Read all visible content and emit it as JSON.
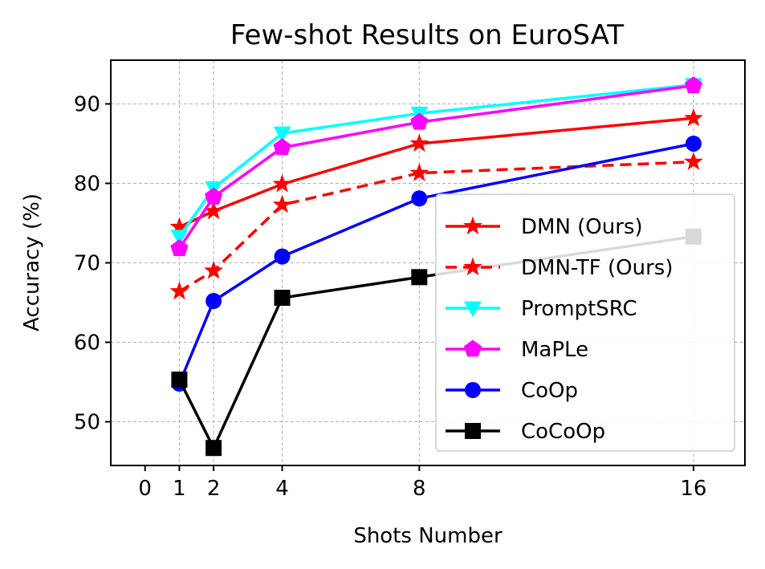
{
  "chart_data": {
    "type": "line",
    "title": "Few-shot Results on EuroSAT",
    "xlabel": "Shots Number",
    "ylabel": "Accuracy (%)",
    "x": [
      1,
      2,
      4,
      8,
      16
    ],
    "xticks": [
      0,
      1,
      2,
      4,
      8,
      16
    ],
    "xtick_labels": [
      "0",
      "1",
      "2",
      "4",
      "8",
      "16"
    ],
    "yticks": [
      50,
      60,
      70,
      80,
      90
    ],
    "ytick_labels": [
      "50",
      "60",
      "70",
      "80",
      "90"
    ],
    "xlim": [
      -1,
      17.5
    ],
    "ylim": [
      44.5,
      95.5
    ],
    "grid": true,
    "legend_position": "lower-right",
    "series": [
      {
        "name": "DMN (Ours)",
        "color": "#ff0000",
        "linestyle": "solid",
        "marker": "star",
        "values": [
          74.5,
          76.5,
          79.9,
          85.0,
          88.2
        ]
      },
      {
        "name": "DMN-TF (Ours)",
        "color": "#ff0000",
        "linestyle": "dashed",
        "marker": "star",
        "values": [
          66.4,
          69.0,
          77.3,
          81.3,
          82.7
        ]
      },
      {
        "name": "PromptSRC",
        "color": "#00ffff",
        "linestyle": "solid",
        "marker": "triangle-down",
        "values": [
          73.3,
          79.4,
          86.3,
          88.8,
          92.4
        ]
      },
      {
        "name": "MaPLe",
        "color": "#ff00ff",
        "linestyle": "solid",
        "marker": "pentagon",
        "values": [
          71.8,
          78.3,
          84.5,
          87.7,
          92.3
        ]
      },
      {
        "name": "CoOp",
        "color": "#0000ff",
        "linestyle": "solid",
        "marker": "circle",
        "values": [
          54.8,
          65.2,
          70.8,
          78.1,
          85.0
        ]
      },
      {
        "name": "CoCoOp",
        "color": "#000000",
        "linestyle": "solid",
        "marker": "square",
        "values": [
          55.3,
          46.7,
          65.6,
          68.2,
          73.3
        ]
      }
    ]
  }
}
